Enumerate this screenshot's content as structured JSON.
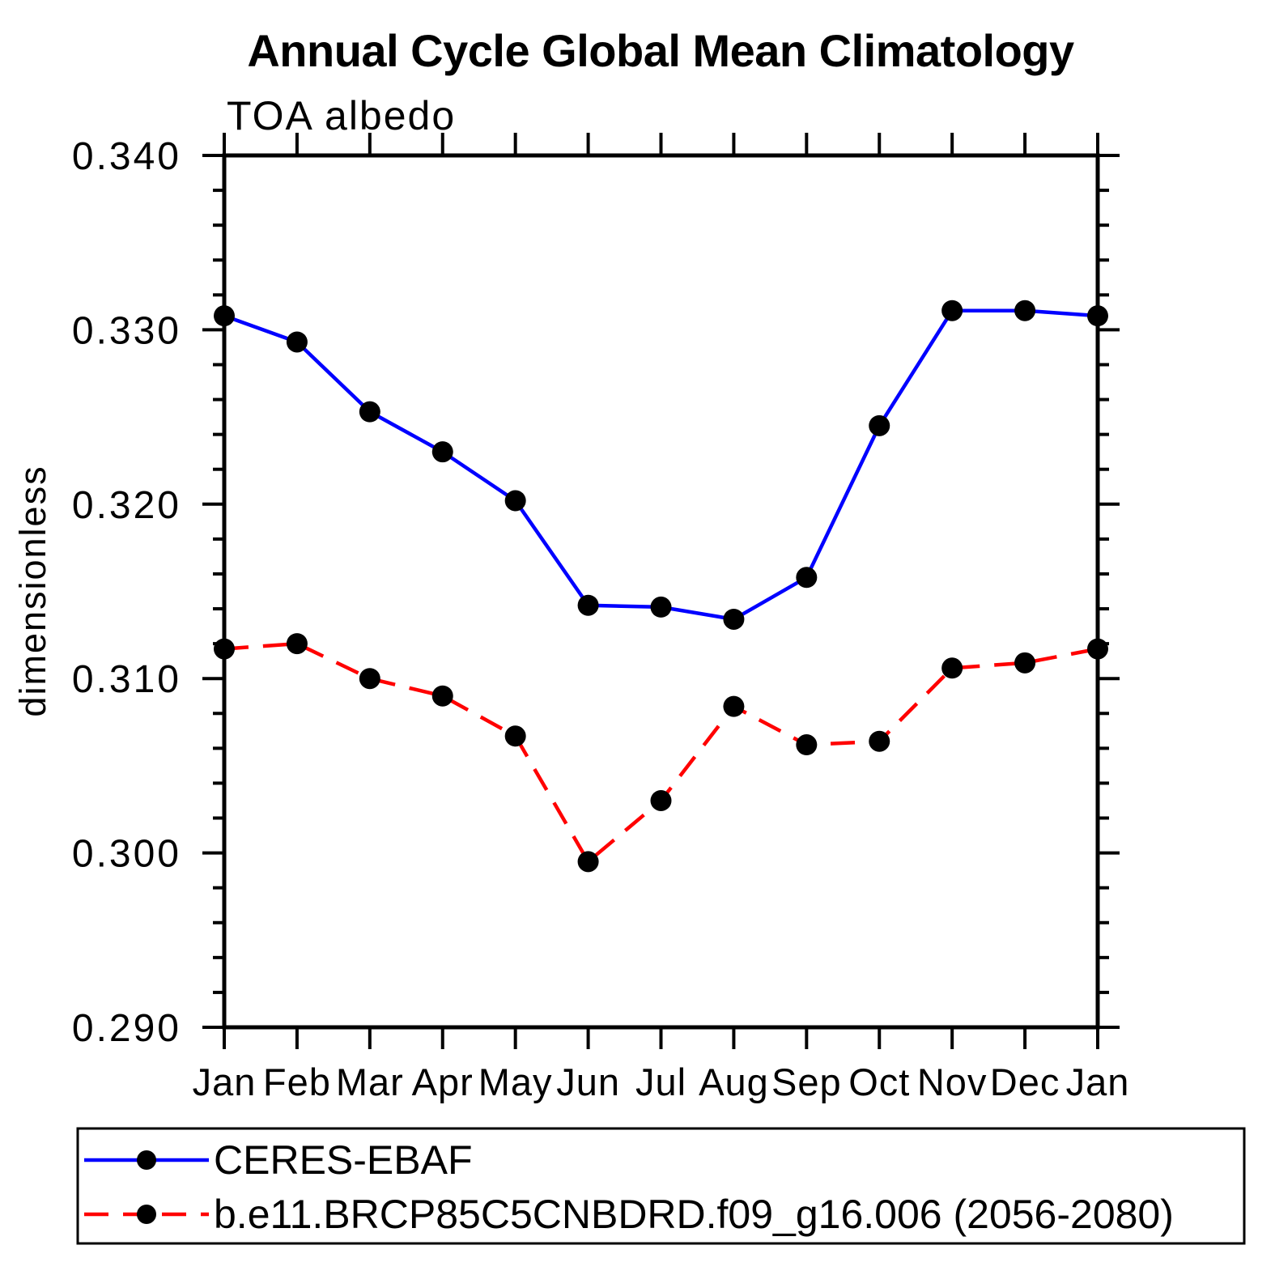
{
  "title": "Annual Cycle Global Mean Climatology",
  "subtitle": "TOA albedo",
  "y_axis": {
    "label": "dimensionless",
    "tick_labels": [
      "0.290",
      "0.300",
      "0.310",
      "0.320",
      "0.330",
      "0.340"
    ]
  },
  "x_axis": {
    "tick_labels": [
      "Jan",
      "Feb",
      "Mar",
      "Apr",
      "May",
      "Jun",
      "Jul",
      "Aug",
      "Sep",
      "Oct",
      "Nov",
      "Dec",
      "Jan"
    ]
  },
  "legend": {
    "entries": [
      {
        "label": "CERES-EBAF",
        "line_color": "#0000ff",
        "line_style": "solid",
        "marker": "filled-circle",
        "marker_color": "#000000"
      },
      {
        "label": "b.e11.BRCP85C5CNBDRD.f09_g16.006 (2056-2080)",
        "line_color": "#ff0000",
        "line_style": "dashed",
        "marker": "filled-circle",
        "marker_color": "#000000"
      }
    ]
  },
  "chart_data": {
    "type": "line",
    "title": "Annual Cycle Global Mean Climatology",
    "subtitle": "TOA albedo",
    "xlabel": "",
    "ylabel": "dimensionless",
    "ylim": [
      0.29,
      0.34
    ],
    "y_major_step": 0.01,
    "y_minor_step": 0.002,
    "grid": false,
    "legend_position": "bottom-left-box",
    "categories": [
      "Jan",
      "Feb",
      "Mar",
      "Apr",
      "May",
      "Jun",
      "Jul",
      "Aug",
      "Sep",
      "Oct",
      "Nov",
      "Dec",
      "Jan"
    ],
    "series": [
      {
        "name": "CERES-EBAF",
        "color": "#0000ff",
        "line_style": "solid",
        "marker": "filled-circle",
        "marker_color": "#000000",
        "values": [
          0.3308,
          0.3293,
          0.3253,
          0.323,
          0.3202,
          0.3142,
          0.3141,
          0.3134,
          0.3158,
          0.3245,
          0.3311,
          0.3311,
          0.3308
        ]
      },
      {
        "name": "b.e11.BRCP85C5CNBDRD.f09_g16.006 (2056-2080)",
        "color": "#ff0000",
        "line_style": "dashed",
        "marker": "filled-circle",
        "marker_color": "#000000",
        "values": [
          0.3117,
          0.312,
          0.31,
          0.309,
          0.3067,
          0.2995,
          0.303,
          0.3084,
          0.3062,
          0.3064,
          0.3106,
          0.3109,
          0.3117
        ]
      }
    ]
  }
}
